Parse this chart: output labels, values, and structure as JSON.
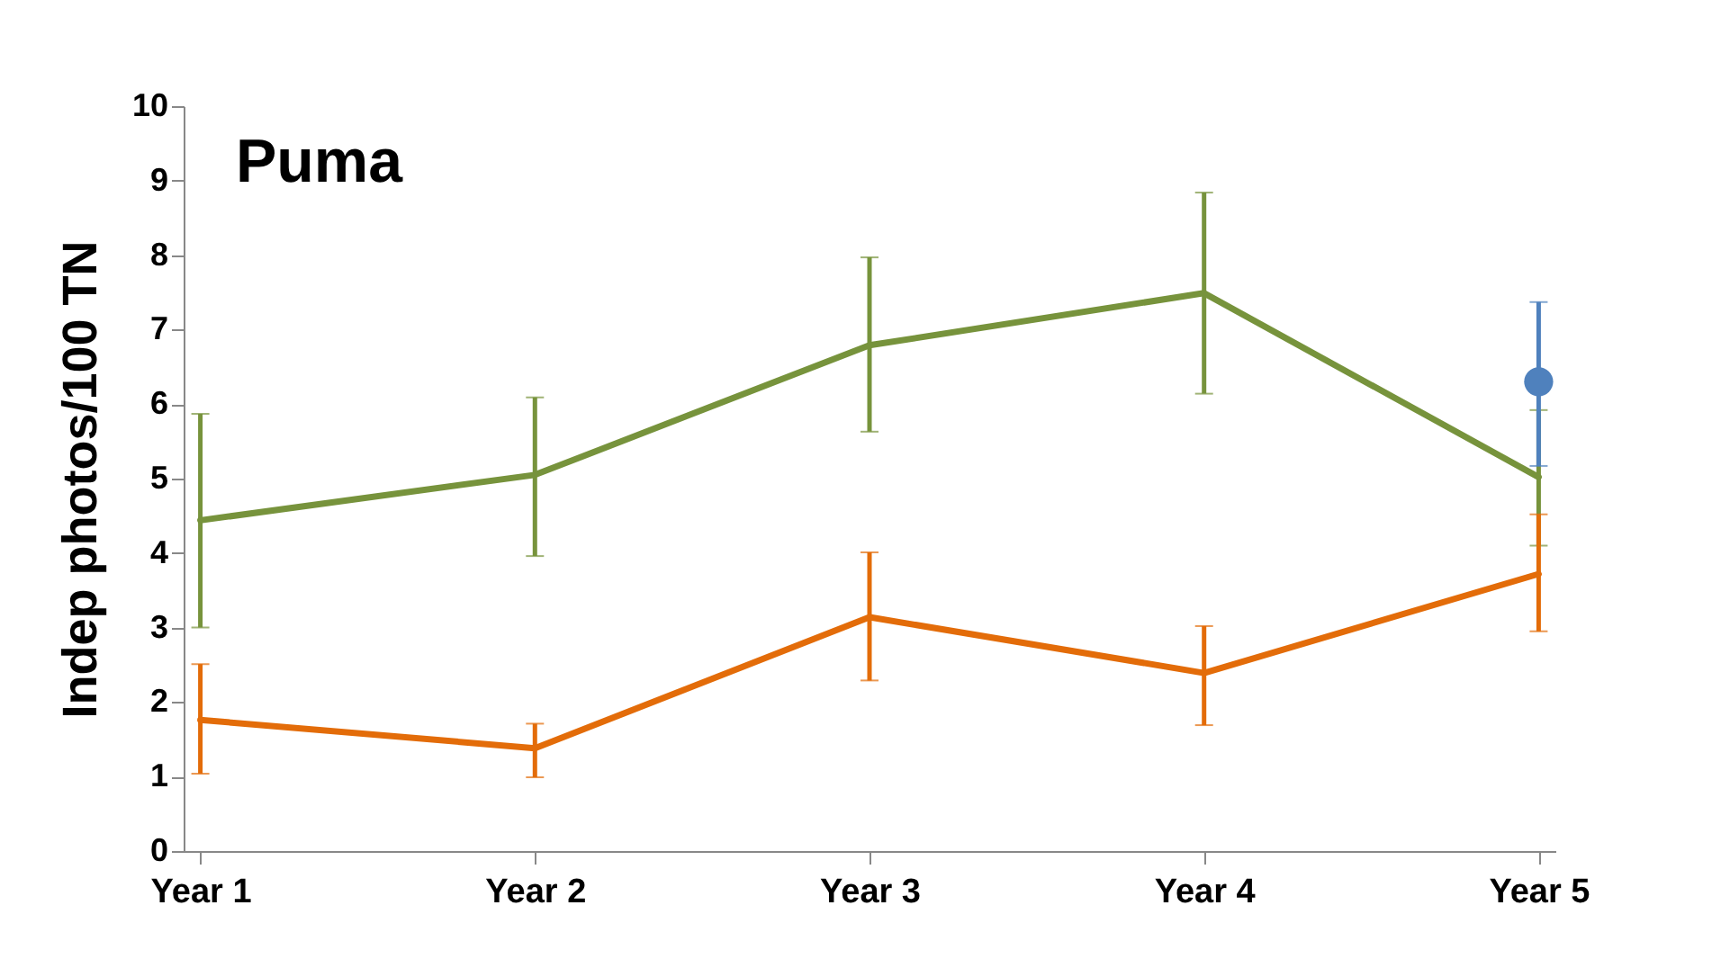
{
  "chart_data": {
    "type": "line",
    "title": "Puma",
    "ylabel": "Indep photos/100 TN",
    "categories": [
      "Year 1",
      "Year 2",
      "Year 3",
      "Year 4",
      "Year 5"
    ],
    "ylim": [
      0,
      10
    ],
    "yticks": [
      0,
      1,
      2,
      3,
      4,
      5,
      6,
      7,
      8,
      9,
      10
    ],
    "grid": false,
    "legend": false,
    "line_style": "solid",
    "series": [
      {
        "color": "#77933c",
        "values": [
          4.44,
          5.05,
          6.79,
          7.49,
          5.02
        ],
        "errors": [
          [
            3.0,
            5.87
          ],
          [
            3.96,
            6.09
          ],
          [
            5.63,
            7.97
          ],
          [
            6.14,
            8.84
          ],
          [
            4.1,
            5.92
          ]
        ]
      },
      {
        "color": "#e36c09",
        "values": [
          1.76,
          1.38,
          3.14,
          2.39,
          3.72
        ],
        "errors": [
          [
            1.04,
            2.51
          ],
          [
            0.99,
            1.71
          ],
          [
            2.29,
            4.01
          ],
          [
            1.69,
            3.02
          ],
          [
            2.95,
            4.52
          ]
        ]
      },
      {
        "type": "scatter",
        "marker": "circle",
        "color": "#4f81bd",
        "values": [
          null,
          null,
          null,
          null,
          6.3
        ],
        "errors": [
          null,
          null,
          null,
          null,
          [
            5.17,
            7.37
          ]
        ]
      }
    ]
  }
}
